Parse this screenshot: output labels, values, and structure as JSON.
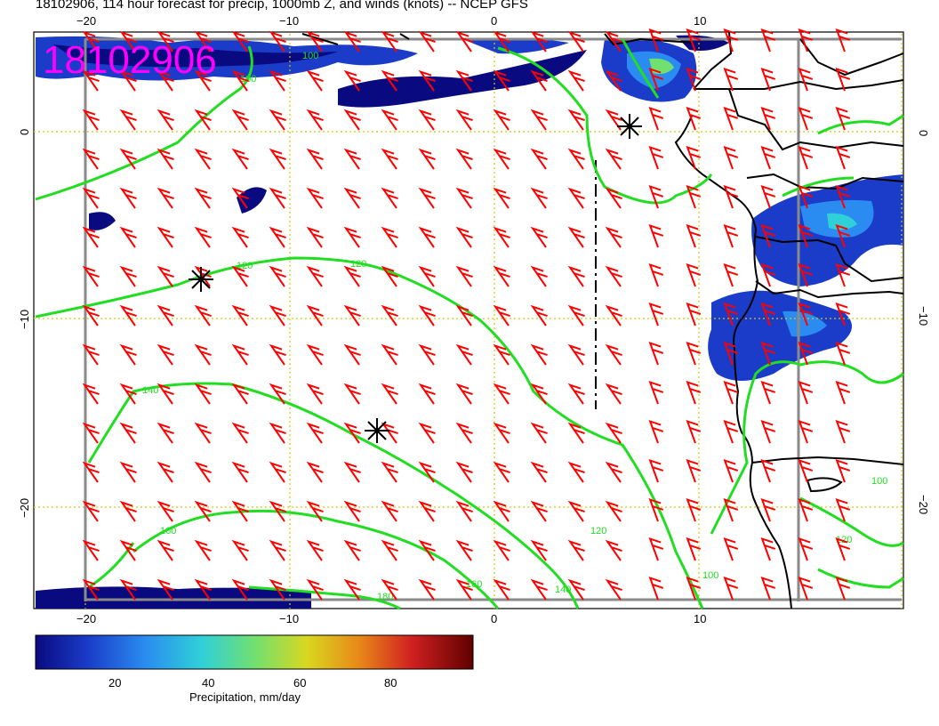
{
  "title": "18102906, 114 hour forecast for precip, 1000mb Z, and winds (knots) -- NCEP GFS",
  "stamp": "18102906",
  "axes": {
    "lon_ticks": [
      "−20",
      "−10",
      "0",
      "10"
    ],
    "lat_ticks": [
      "0",
      "−10",
      "−20"
    ]
  },
  "contour_labels": [
    "100",
    "120",
    "120",
    "140",
    "160",
    "180",
    "160",
    "140",
    "120",
    "100",
    "100",
    "100",
    "120"
  ],
  "colorbar": {
    "title": "Precipitation, mm/day",
    "ticks": [
      "20",
      "40",
      "60",
      "80"
    ],
    "colors": [
      "#0a0a80",
      "#1a3cc8",
      "#2a8cf0",
      "#30d0d8",
      "#70e070",
      "#d8d820",
      "#e88818",
      "#d02020",
      "#600000"
    ]
  },
  "markers": [
    "tropical-low-star",
    "tropical-low-star",
    "tropical-low-star"
  ],
  "colors": {
    "contour": "#22dd22",
    "wind_barbs": "#ff0000",
    "coast": "#000000",
    "grid": "#d8c800",
    "stamp": "#ff00ff"
  }
}
